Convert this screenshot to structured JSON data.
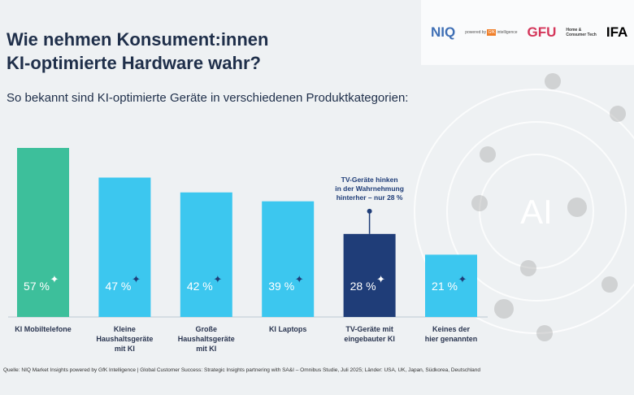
{
  "header": {
    "title_line1": "Wie nehmen Konsument:innen",
    "title_line2": "KI-optimierte Hardware wahr?",
    "subtitle": "So bekannt sind KI-optimierte Geräte in verschiedenen Produktkategorien:"
  },
  "logos": {
    "niq": "NIQ",
    "powered": "powered by",
    "gfk": "GfK",
    "intelligence": "intelligence",
    "gfu": "GFU",
    "gfu_sub1": "Home &",
    "gfu_sub2": "Consumer Tech",
    "ifa": "IFA",
    "ai": "AI"
  },
  "chart_data": {
    "type": "bar",
    "categories": [
      [
        "KI Mobiltelefone"
      ],
      [
        "Kleine",
        "Haushaltsgeräte",
        "mit KI"
      ],
      [
        "Große",
        "Haushaltsgeräte",
        "mit KI"
      ],
      [
        "KI Laptops"
      ],
      [
        "TV-Geräte mit",
        "eingebauter KI"
      ],
      [
        "Keines der",
        "hier genannten"
      ]
    ],
    "values": [
      57,
      47,
      42,
      39,
      28,
      21
    ],
    "unit": "%",
    "colors": [
      "#3dbf9b",
      "#3cc7ef",
      "#3cc7ef",
      "#3cc7ef",
      "#1f3d78",
      "#3cc7ef"
    ],
    "annotation": {
      "index": 4,
      "lines": [
        "TV-Geräte hinken",
        "in der Wahrnehmung",
        "hinterher – nur 28 %"
      ],
      "color": "#1f3d78"
    },
    "ylim": [
      0,
      57
    ]
  },
  "source": "Quelle: NIQ Market Insights powered by GfK Intelligence | Global Customer Success: Strategic Insights partnering with SA&I  – Omnibus Studie, Juli 2025; Länder: USA, UK, Japan, Südkorea, Deutschland"
}
